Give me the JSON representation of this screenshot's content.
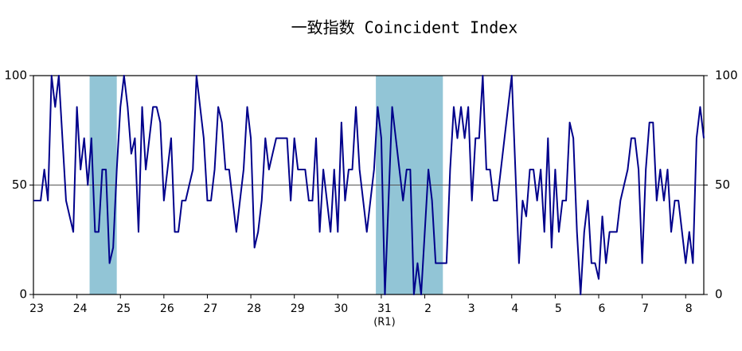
{
  "chart_data": {
    "type": "line",
    "title": "一致指数 Coincident Index",
    "x_annotation": "(R1)",
    "categories": [
      "23",
      null,
      null,
      null,
      null,
      null,
      null,
      null,
      null,
      null,
      null,
      null,
      "24",
      null,
      null,
      null,
      null,
      null,
      null,
      null,
      null,
      null,
      null,
      null,
      "25",
      null,
      null,
      null,
      null,
      null,
      null,
      null,
      null,
      null,
      null,
      null,
      "26",
      null,
      null,
      null,
      null,
      null,
      null,
      null,
      null,
      null,
      null,
      null,
      "27",
      null,
      null,
      null,
      null,
      null,
      null,
      null,
      null,
      null,
      null,
      null,
      "28",
      null,
      null,
      null,
      null,
      null,
      null,
      null,
      null,
      null,
      null,
      null,
      "29",
      null,
      null,
      null,
      null,
      null,
      null,
      null,
      null,
      null,
      null,
      null,
      "30",
      null,
      null,
      null,
      null,
      null,
      null,
      null,
      null,
      null,
      null,
      null,
      "31",
      null,
      null,
      null,
      null,
      null,
      null,
      null,
      null,
      null,
      null,
      null,
      "2",
      null,
      null,
      null,
      null,
      null,
      null,
      null,
      null,
      null,
      null,
      null,
      "3",
      null,
      null,
      null,
      null,
      null,
      null,
      null,
      null,
      null,
      null,
      null,
      "4",
      null,
      null,
      null,
      null,
      null,
      null,
      null,
      null,
      null,
      null,
      null,
      "5",
      null,
      null,
      null,
      null,
      null,
      null,
      null,
      null,
      null,
      null,
      null,
      "6",
      null,
      null,
      null,
      null,
      null,
      null,
      null,
      null,
      null,
      null,
      null,
      "7",
      null,
      null,
      null,
      null,
      null,
      null,
      null,
      null,
      null,
      null,
      null,
      "8",
      null,
      null,
      null,
      null,
      null
    ],
    "values": [
      42.9,
      42.9,
      42.9,
      57.1,
      42.9,
      100,
      85.7,
      100,
      71.4,
      42.9,
      35.7,
      28.6,
      85.7,
      57.1,
      71.4,
      50,
      71.4,
      28.6,
      28.6,
      57.1,
      57.1,
      14.3,
      21.4,
      57.1,
      85.7,
      100,
      85.7,
      64.3,
      71.4,
      28.6,
      85.7,
      57.1,
      71.4,
      85.7,
      85.7,
      78.6,
      42.9,
      57.1,
      71.4,
      28.6,
      28.6,
      42.9,
      42.9,
      50,
      57.1,
      100,
      85.7,
      71.4,
      42.9,
      42.9,
      57.1,
      85.7,
      78.6,
      57.1,
      57.1,
      42.9,
      28.6,
      42.9,
      57.1,
      85.7,
      71.4,
      21.4,
      28.6,
      42.9,
      71.4,
      57.1,
      64.3,
      71.4,
      71.4,
      71.4,
      71.4,
      42.9,
      71.4,
      57.1,
      57.1,
      57.1,
      42.9,
      42.9,
      71.4,
      28.6,
      57.1,
      42.9,
      28.6,
      57.1,
      28.6,
      78.6,
      42.9,
      57.1,
      57.1,
      85.7,
      57.1,
      42.9,
      28.6,
      42.9,
      57.1,
      85.7,
      71.4,
      0,
      42.9,
      85.7,
      71.4,
      57.1,
      42.9,
      57.1,
      57.1,
      0,
      14.3,
      0,
      28.6,
      57.1,
      42.9,
      14.3,
      14.3,
      14.3,
      14.3,
      57.1,
      85.7,
      71.4,
      85.7,
      71.4,
      85.7,
      42.9,
      71.4,
      71.4,
      100,
      57.1,
      57.1,
      42.9,
      42.9,
      57.1,
      71.4,
      85.7,
      100,
      57.1,
      14.3,
      42.9,
      35.7,
      57.1,
      57.1,
      42.9,
      57.1,
      28.6,
      71.4,
      21.4,
      57.1,
      28.6,
      42.9,
      42.9,
      78.6,
      71.4,
      28.6,
      0,
      28.6,
      42.9,
      14.3,
      14.3,
      7.1,
      35.7,
      14.3,
      28.6,
      28.6,
      28.6,
      42.9,
      50,
      57.1,
      71.4,
      71.4,
      57.1,
      14.3,
      57.1,
      78.6,
      78.6,
      42.9,
      57.1,
      42.9,
      57.1,
      28.6,
      42.9,
      42.9,
      28.6,
      14.3,
      28.6,
      14.3,
      71.4,
      85.7,
      71.4
    ],
    "color": "#00008b",
    "shade_color": "#92c5d6",
    "shaded": [
      [
        16,
        23
      ],
      [
        95,
        113
      ]
    ],
    "ylim": [
      0,
      100
    ],
    "yticks": [
      0,
      50,
      100
    ],
    "grid": true
  }
}
